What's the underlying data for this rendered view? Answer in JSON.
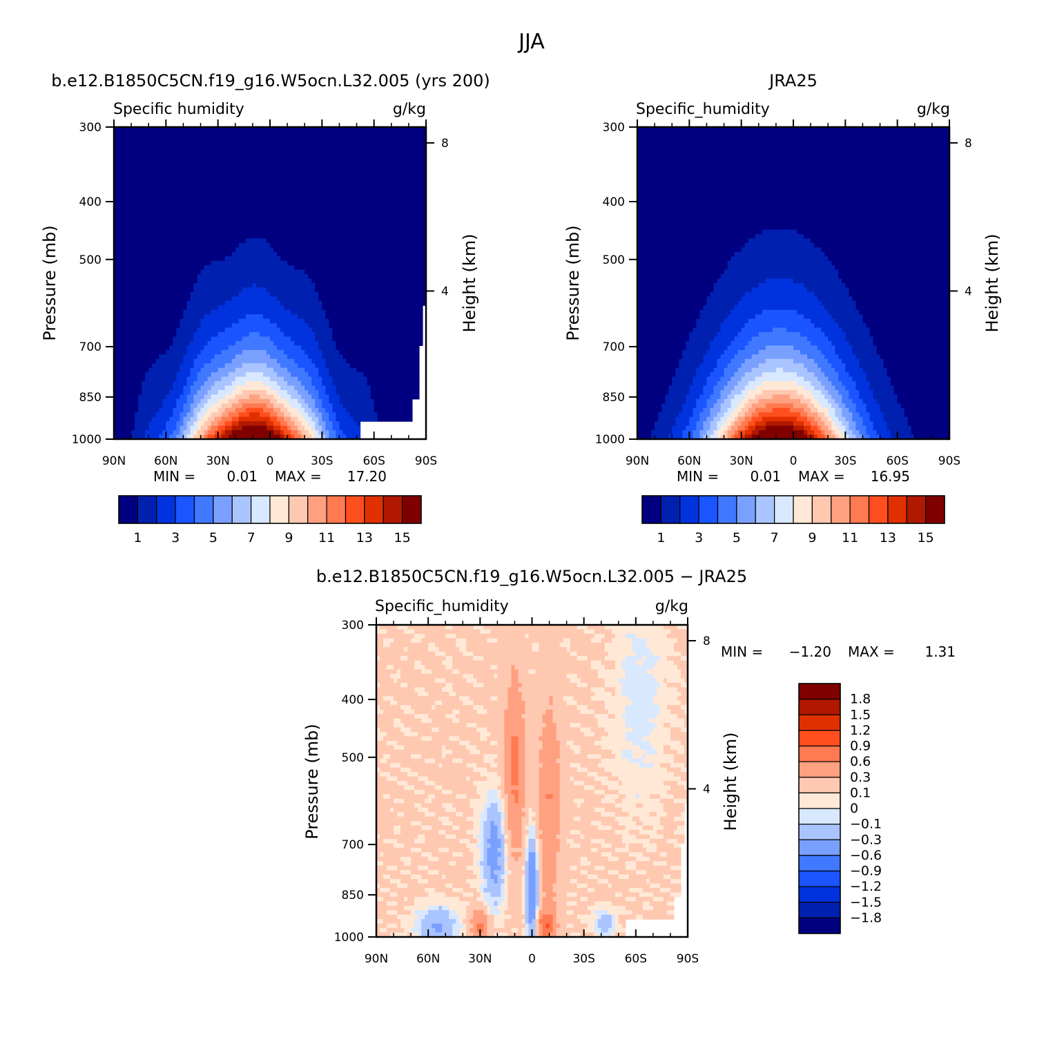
{
  "figure": {
    "title": "JJA"
  },
  "colors": {
    "abs_scale": [
      "#000080",
      "#0020b0",
      "#0033dd",
      "#1a55ff",
      "#4078ff",
      "#7aa0ff",
      "#aac4ff",
      "#d8e8ff",
      "#ffe8d6",
      "#ffc8b0",
      "#ffa080",
      "#ff7a50",
      "#ff4f1e",
      "#e03000",
      "#b01800",
      "#800000"
    ],
    "diff_scale": [
      "#000080",
      "#0020b0",
      "#0033dd",
      "#1a55ff",
      "#4078ff",
      "#7aa0ff",
      "#aac4ff",
      "#d8e8ff",
      "#ffe8d6",
      "#ffc8b0",
      "#ffa080",
      "#ff7a50",
      "#ff4f1e",
      "#e03000",
      "#b01800",
      "#800000"
    ]
  },
  "chart_data": [
    {
      "type": "heatmap",
      "panel_title": "b.e12.B1850C5CN.f19_g16.W5ocn.L32.005 (yrs 200)",
      "left_label": "Specific humidity",
      "unit": "g/kg",
      "ylabel": "Pressure (mb)",
      "right_label": "Height (km)",
      "x_ticks": [
        "90N",
        "60N",
        "30N",
        "0",
        "30S",
        "60S",
        "90S"
      ],
      "y_ticks": [
        300,
        400,
        500,
        700,
        850,
        1000
      ],
      "height_ticks": [
        4,
        8
      ],
      "ylim": [
        300,
        1000
      ],
      "stats": {
        "min_label": "MIN =",
        "min": "0.01",
        "max_label": "MAX =",
        "max": "17.20"
      },
      "colorbar_labels": [
        "1",
        "3",
        "5",
        "7",
        "9",
        "11",
        "13",
        "15"
      ],
      "peak": 17.2,
      "peak_lat": 10,
      "levels": [
        1,
        2,
        3,
        4,
        5,
        6,
        7,
        8,
        9,
        10,
        11,
        12,
        13,
        14,
        15
      ]
    },
    {
      "type": "heatmap",
      "panel_title": "JRA25",
      "left_label": "Specific_humidity",
      "unit": "g/kg",
      "ylabel": "Pressure (mb)",
      "right_label": "Height (km)",
      "x_ticks": [
        "90N",
        "60N",
        "30N",
        "0",
        "30S",
        "60S",
        "90S"
      ],
      "y_ticks": [
        300,
        400,
        500,
        700,
        850,
        1000
      ],
      "height_ticks": [
        4,
        8
      ],
      "ylim": [
        300,
        1000
      ],
      "stats": {
        "min_label": "MIN =",
        "min": "0.01",
        "max_label": "MAX =",
        "max": "16.95"
      },
      "colorbar_labels": [
        "1",
        "3",
        "5",
        "7",
        "9",
        "11",
        "13",
        "15"
      ],
      "peak": 16.95,
      "peak_lat": 8,
      "levels": [
        1,
        2,
        3,
        4,
        5,
        6,
        7,
        8,
        9,
        10,
        11,
        12,
        13,
        14,
        15
      ]
    },
    {
      "type": "heatmap",
      "panel_title": "b.e12.B1850C5CN.f19_g16.W5ocn.L32.005 − JRA25",
      "left_label": "Specific_humidity",
      "unit": "g/kg",
      "ylabel": "Pressure (mb)",
      "right_label": "Height (km)",
      "x_ticks": [
        "90N",
        "60N",
        "30N",
        "0",
        "30S",
        "60S",
        "90S"
      ],
      "y_ticks": [
        300,
        400,
        500,
        700,
        850,
        1000
      ],
      "height_ticks": [
        4,
        8
      ],
      "ylim": [
        300,
        1000
      ],
      "stats": {
        "min_label": "MIN =",
        "min": "−1.20",
        "max_label": "MAX =",
        "max": "1.31"
      },
      "colorbar_labels": [
        "1.8",
        "1.5",
        "1.2",
        "0.9",
        "0.6",
        "0.3",
        "0.1",
        "0",
        "−0.1",
        "−0.3",
        "−0.6",
        "−0.9",
        "−1.2",
        "−1.5",
        "−1.8"
      ],
      "levels": [
        -1.8,
        -1.5,
        -1.2,
        -0.9,
        -0.6,
        -0.3,
        -0.1,
        0,
        0.1,
        0.3,
        0.6,
        0.9,
        1.2,
        1.5,
        1.8
      ]
    }
  ]
}
